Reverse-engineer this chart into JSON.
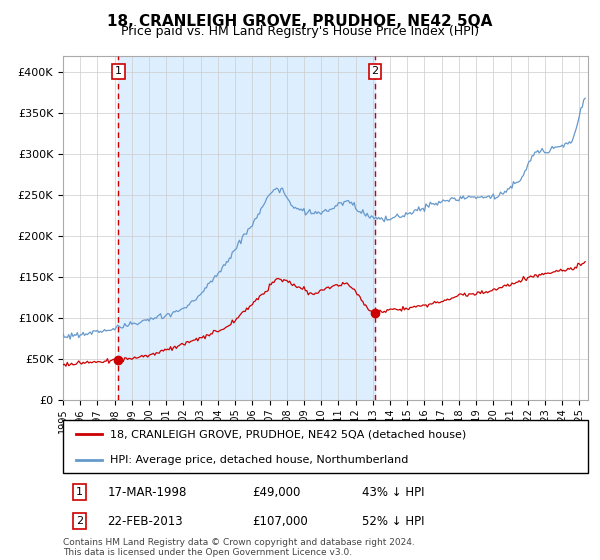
{
  "title": "18, CRANLEIGH GROVE, PRUDHOE, NE42 5QA",
  "subtitle": "Price paid vs. HM Land Registry's House Price Index (HPI)",
  "legend_line1": "18, CRANLEIGH GROVE, PRUDHOE, NE42 5QA (detached house)",
  "legend_line2": "HPI: Average price, detached house, Northumberland",
  "annotation1_date": "17-MAR-1998",
  "annotation1_price": "£49,000",
  "annotation1_hpi": "43% ↓ HPI",
  "annotation2_date": "22-FEB-2013",
  "annotation2_price": "£107,000",
  "annotation2_hpi": "52% ↓ HPI",
  "footnote": "Contains HM Land Registry data © Crown copyright and database right 2024.\nThis data is licensed under the Open Government Licence v3.0.",
  "red_line_color": "#cc0000",
  "blue_line_color": "#6699cc",
  "shading_color": "#ddeeff",
  "dashed_line_color": "#cc0000",
  "background_color": "#ffffff",
  "grid_color": "#cccccc",
  "ylim": [
    0,
    420000
  ],
  "yticks": [
    0,
    50000,
    100000,
    150000,
    200000,
    250000,
    300000,
    350000,
    400000
  ],
  "sale1_x": 1998.21,
  "sale1_y": 49000,
  "sale2_x": 2013.13,
  "sale2_y": 107000,
  "xmin": 1995.0,
  "xmax": 2025.5
}
